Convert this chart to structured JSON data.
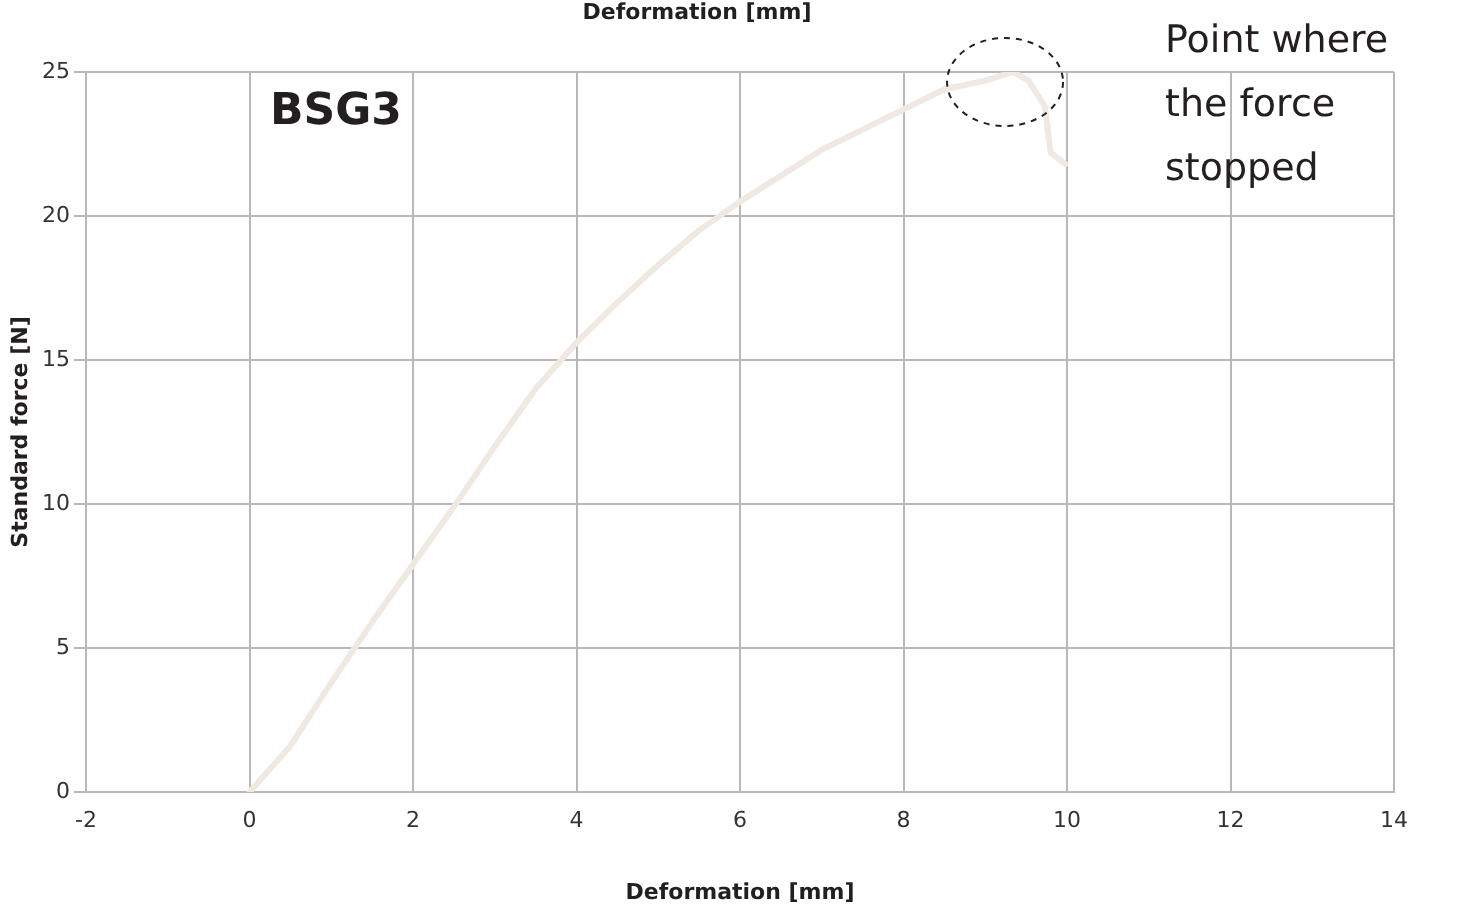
{
  "chart_data": {
    "type": "line",
    "title": "Deformation [mm]",
    "xlabel": "Deformation [mm]",
    "ylabel": "Standard force [N]",
    "annotations": [
      "BSG3",
      "Point where the force stopped"
    ],
    "xlim": [
      -2,
      14
    ],
    "xticks": [
      -2,
      0,
      2,
      4,
      6,
      8,
      10,
      12,
      14
    ],
    "ylim": [
      0,
      25
    ],
    "yticks": [
      0,
      5,
      10,
      15,
      20,
      25
    ],
    "grid": true,
    "legend": false,
    "marker": "none",
    "series": [
      {
        "color": "#efe9e1",
        "x": [
          0,
          0.5,
          1,
          1.5,
          2,
          2.5,
          3,
          3.5,
          4,
          4.5,
          5,
          5.5,
          6,
          6.5,
          7,
          7.5,
          8,
          8.5,
          9,
          9.34,
          9.53,
          9.73,
          9.8,
          9.98
        ],
        "values": [
          0,
          1.6,
          3.8,
          5.9,
          7.9,
          9.9,
          12.0,
          14.0,
          15.6,
          17.0,
          18.3,
          19.5,
          20.5,
          21.4,
          22.3,
          23.0,
          23.7,
          24.4,
          24.7,
          25.0,
          24.7,
          23.8,
          22.2,
          21.8
        ]
      }
    ]
  }
}
